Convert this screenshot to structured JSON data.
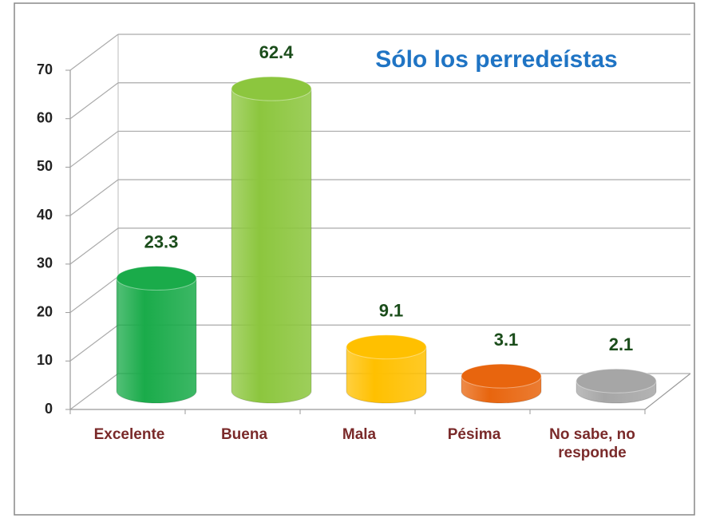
{
  "chart_data": {
    "type": "bar",
    "title": "Sólo los perredeístas",
    "categories": [
      "Excelente",
      "Buena",
      "Mala",
      "Pésima",
      "No sabe, no responde"
    ],
    "values": [
      23.3,
      62.4,
      9.1,
      3.1,
      2.1
    ],
    "colors": [
      "#1aab4a",
      "#8cc63e",
      "#ffc000",
      "#e8650e",
      "#a6a6a6"
    ],
    "ylim": [
      0,
      70
    ],
    "yticks": [
      0,
      10,
      20,
      30,
      40,
      50,
      60,
      70
    ],
    "grid": true
  }
}
